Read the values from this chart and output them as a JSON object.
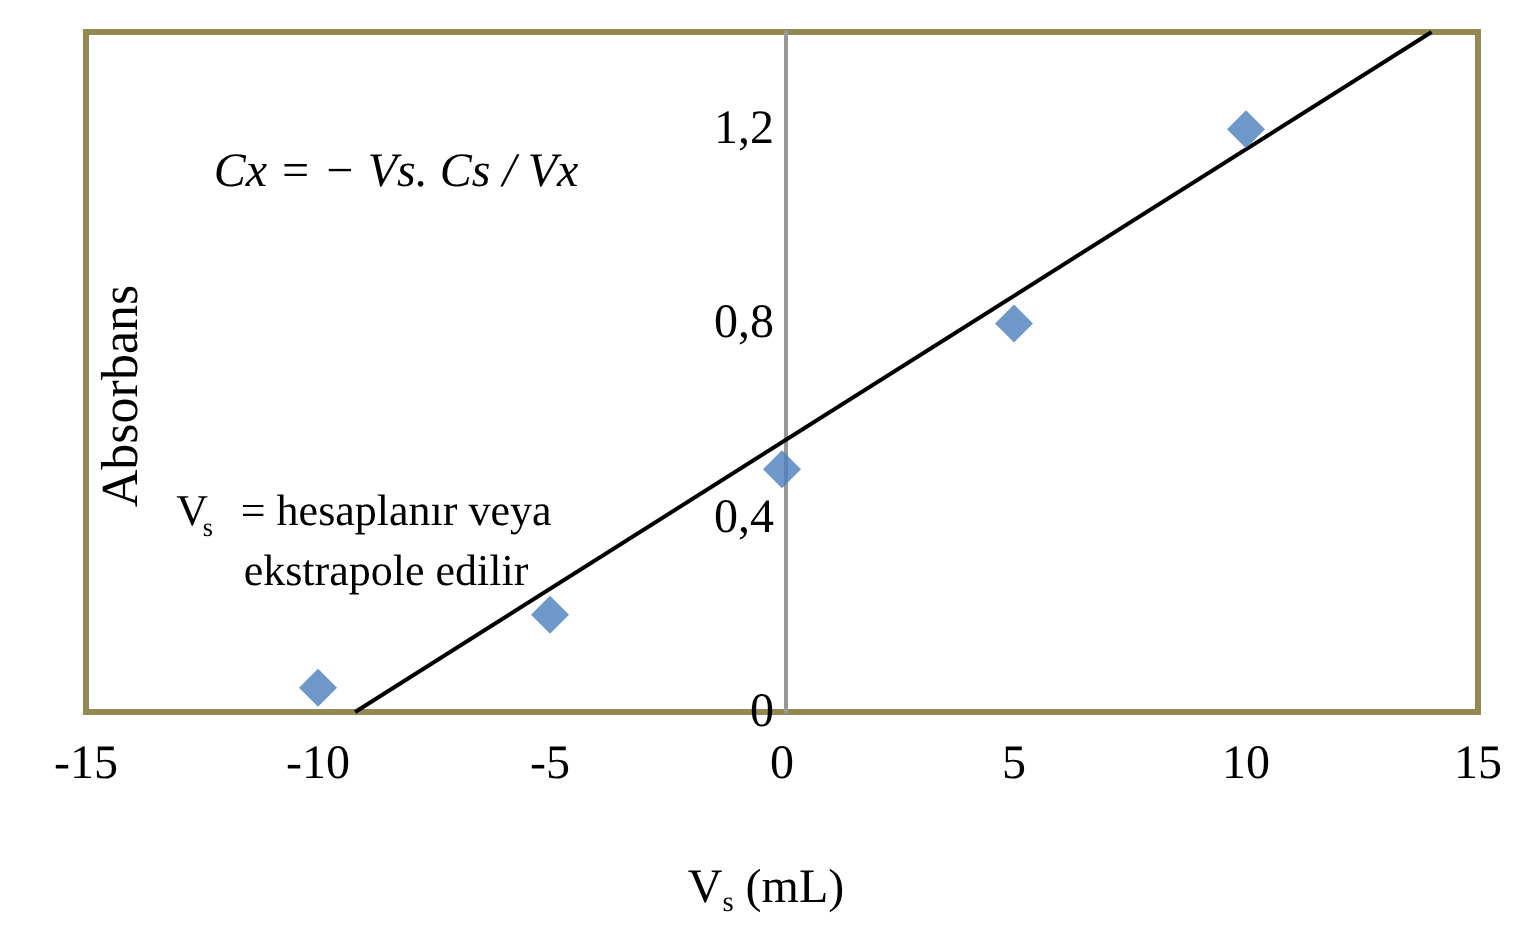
{
  "chart_data": {
    "type": "scatter",
    "xlabel": "V$_{s}$ (mL)",
    "ylabel": "Absorbans",
    "annotations": [
      "Cx = − Vs. Cs / Vx",
      "V$_{s}$= hesaplanır veya ekstrapole edilir"
    ],
    "x": [
      -10,
      -5,
      0,
      5,
      10
    ],
    "series": [
      {
        "color": "#4a7ebb",
        "marker": "diamond",
        "values": [
          0.05,
          0.2,
          0.5,
          0.8,
          1.2
        ]
      },
      {
        "type": "line",
        "color": "#000000",
        "marker": "none",
        "x": [
          -9.2,
          14
        ],
        "values": [
          0,
          1.4
        ]
      }
    ],
    "xlim": [
      -15,
      15
    ],
    "xticks": [
      -15,
      -10,
      -5,
      0,
      5,
      10,
      15
    ],
    "ylim": [
      0,
      1.4
    ],
    "yticks": [
      {
        "value": 0,
        "label": "0"
      },
      {
        "value": 0.4,
        "label": "0,4"
      },
      {
        "value": 0.8,
        "label": "0,8"
      },
      {
        "value": 1.2,
        "label": "1,2"
      }
    ],
    "grid": false
  }
}
